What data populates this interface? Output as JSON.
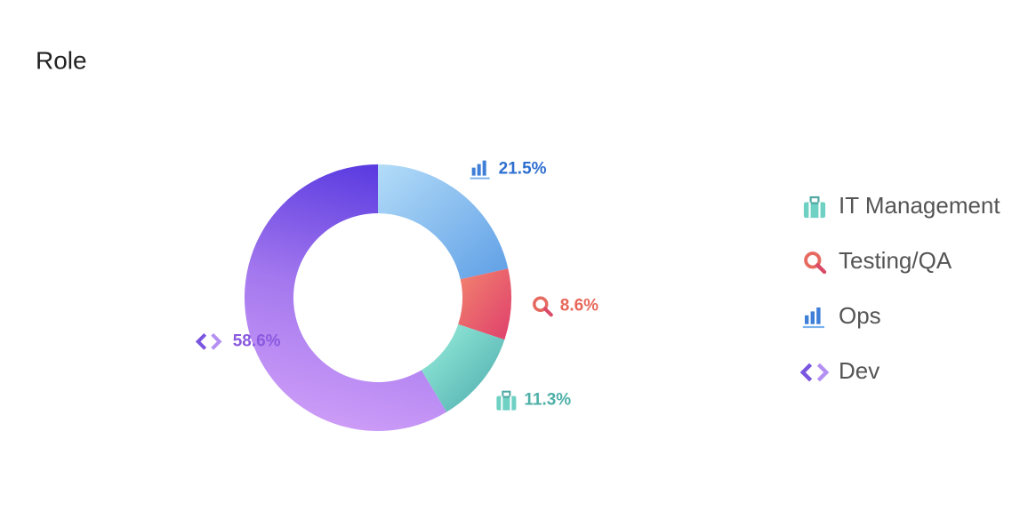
{
  "chart_data": {
    "type": "donut",
    "title": "Role",
    "categories": [
      "Ops",
      "Testing/QA",
      "IT Management",
      "Dev"
    ],
    "values": [
      21.5,
      8.6,
      11.3,
      58.6
    ],
    "value_labels": [
      "21.5%",
      "8.6%",
      "11.3%",
      "58.6%"
    ],
    "colors": [
      "#2f6fd0",
      "#e8675a",
      "#4fb0a8",
      "#8a5ae0"
    ]
  }
}
